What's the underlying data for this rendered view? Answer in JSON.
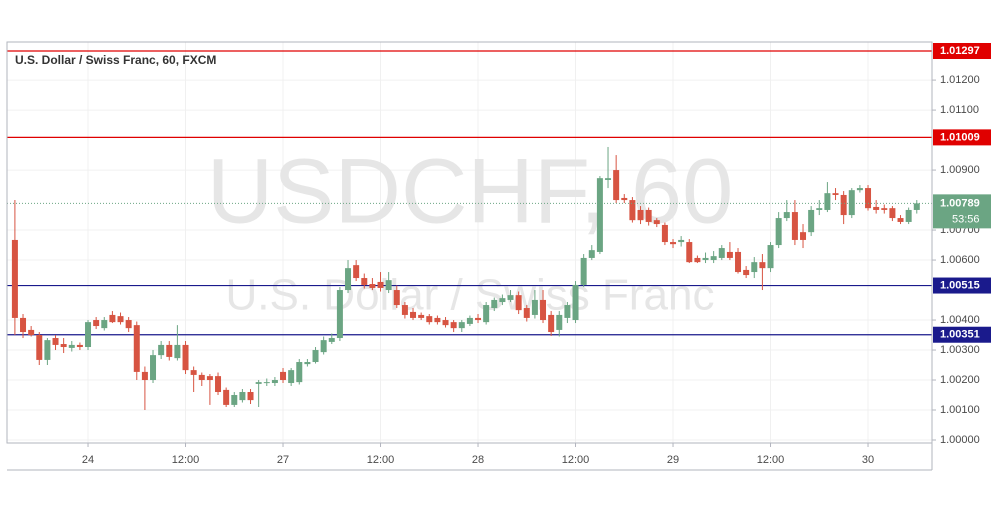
{
  "chart_data": {
    "type": "candlestick",
    "title": "U.S. Dollar / Swiss Franc, 60, FXCM",
    "watermark": {
      "symbol": "USDCHF, 60",
      "name": "U.S. Dollar / Swiss Franc"
    },
    "up_color": "#6ba583",
    "down_color": "#d75442",
    "categories": [
      null,
      null,
      null,
      null,
      null,
      null,
      null,
      null,
      null,
      "24",
      null,
      null,
      null,
      null,
      null,
      null,
      null,
      null,
      null,
      null,
      null,
      "12:00",
      null,
      null,
      null,
      null,
      null,
      null,
      null,
      null,
      null,
      null,
      null,
      "27",
      null,
      null,
      null,
      null,
      null,
      null,
      null,
      null,
      null,
      null,
      null,
      "12:00",
      null,
      null,
      null,
      null,
      null,
      null,
      null,
      null,
      null,
      null,
      null,
      "28",
      null,
      null,
      null,
      null,
      null,
      null,
      null,
      null,
      null,
      null,
      null,
      "12:00",
      null,
      null,
      null,
      null,
      null,
      null,
      null,
      null,
      null,
      null,
      null,
      "29",
      null,
      null,
      null,
      null,
      null,
      null,
      null,
      null,
      null,
      null,
      null,
      "12:00",
      null,
      null,
      null,
      null,
      null,
      null,
      null,
      null,
      null,
      null,
      null,
      "30",
      null,
      null,
      null,
      null,
      null,
      null
    ],
    "open": [
      1.00667,
      1.00407,
      1.00367,
      1.0035,
      1.00267,
      1.0034,
      1.0032,
      1.00307,
      1.00317,
      1.0031,
      1.004,
      1.00373,
      1.00417,
      1.00413,
      1.004,
      1.00383,
      1.00227,
      1.002,
      1.00283,
      1.00317,
      1.00273,
      1.00317,
      1.00233,
      1.00217,
      1.00213,
      1.00213,
      1.00167,
      1.00117,
      1.00133,
      1.0016,
      1.00187,
      1.0019,
      1.0019,
      1.00227,
      1.0019,
      1.00193,
      1.00253,
      1.0026,
      1.00293,
      1.00327,
      1.0034,
      1.005,
      1.00583,
      1.0054,
      1.0052,
      1.00527,
      1.005,
      1.005,
      1.0045,
      1.00427,
      1.00417,
      1.00413,
      1.00407,
      1.004,
      1.00393,
      1.00373,
      1.00387,
      1.00407,
      1.00393,
      1.0044,
      1.0046,
      1.00467,
      1.00483,
      1.0044,
      1.00417,
      1.00467,
      1.00417,
      1.00367,
      1.00407,
      1.004,
      1.00517,
      1.00607,
      1.00627,
      1.00867,
      1.009,
      1.00807,
      1.008,
      1.00767,
      1.00767,
      1.00733,
      1.00717,
      1.0066,
      1.0066,
      1.0066,
      1.00607,
      1.006,
      1.006,
      1.00607,
      1.00627,
      1.00627,
      1.00567,
      1.0056,
      1.00593,
      1.00573,
      1.0065,
      1.0074,
      1.0076,
      1.00693,
      1.00693,
      1.00767,
      1.00767,
      1.00823,
      1.00817,
      1.0075,
      1.00833,
      1.0084,
      1.00777,
      1.00773,
      1.00773,
      1.0074,
      1.00727,
      1.00767
    ],
    "high": [
      1.008,
      1.0042,
      1.0038,
      1.0036,
      1.0034,
      1.0035,
      1.0034,
      1.0033,
      1.00325,
      1.004,
      1.0041,
      1.0041,
      1.0043,
      1.00425,
      1.0041,
      1.00395,
      1.00245,
      1.003,
      1.0033,
      1.0033,
      1.00383,
      1.0033,
      1.00245,
      1.00225,
      1.0022,
      1.00225,
      1.00175,
      1.0016,
      1.0017,
      1.0017,
      1.002,
      1.00205,
      1.0021,
      1.0024,
      1.0024,
      1.0027,
      1.0027,
      1.0031,
      1.00345,
      1.00355,
      1.0051,
      1.006,
      1.006,
      1.00555,
      1.0054,
      1.0056,
      1.0056,
      1.00515,
      1.0046,
      1.0044,
      1.00425,
      1.0042,
      1.00415,
      1.0041,
      1.004,
      1.004,
      1.00415,
      1.0042,
      1.0046,
      1.00475,
      1.00485,
      1.005,
      1.00495,
      1.0045,
      1.005,
      1.005,
      1.0043,
      1.0043,
      1.0046,
      1.0053,
      1.0062,
      1.0065,
      1.0088,
      1.00977,
      1.0095,
      1.0082,
      1.0081,
      1.0078,
      1.00775,
      1.0074,
      1.00725,
      1.0067,
      1.0068,
      1.0067,
      1.00615,
      1.00625,
      1.0063,
      1.0065,
      1.0066,
      1.0064,
      1.0058,
      1.0061,
      1.0062,
      1.0066,
      1.0076,
      1.008,
      1.008,
      1.0072,
      1.0078,
      1.008,
      1.0086,
      1.0084,
      1.0083,
      1.0084,
      1.0085,
      1.0085,
      1.008,
      1.00785,
      1.0078,
      1.0075,
      1.00775,
      1.008
    ],
    "low": [
      1.0035,
      1.0034,
      1.00345,
      1.0025,
      1.0025,
      1.003,
      1.0029,
      1.00295,
      1.003,
      1.003,
      1.0037,
      1.00365,
      1.0039,
      1.00385,
      1.0036,
      1.002,
      1.001,
      1.0019,
      1.0027,
      1.00265,
      1.00265,
      1.0022,
      1.0016,
      1.0018,
      1.00117,
      1.0015,
      1.0011,
      1.0011,
      1.00125,
      1.0012,
      1.0011,
      1.0018,
      1.0018,
      1.0019,
      1.0018,
      1.00185,
      1.00245,
      1.00255,
      1.00285,
      1.0032,
      1.0033,
      1.0049,
      1.0053,
      1.00505,
      1.005,
      1.00495,
      1.0049,
      1.0044,
      1.00405,
      1.004,
      1.004,
      1.00385,
      1.00385,
      1.00375,
      1.0036,
      1.0036,
      1.0038,
      1.0039,
      1.00385,
      1.0043,
      1.0045,
      1.0046,
      1.0042,
      1.00395,
      1.00405,
      1.0039,
      1.00347,
      1.00345,
      1.0039,
      1.0039,
      1.0051,
      1.006,
      1.0062,
      1.0084,
      1.0079,
      1.0079,
      1.00725,
      1.0072,
      1.00715,
      1.0071,
      1.0065,
      1.0064,
      1.00645,
      1.0059,
      1.0059,
      1.0059,
      1.0059,
      1.006,
      1.006,
      1.00555,
      1.0054,
      1.0054,
      1.005,
      1.0056,
      1.0064,
      1.0073,
      1.0065,
      1.0064,
      1.0068,
      1.0075,
      1.0076,
      1.008,
      1.0072,
      1.0074,
      1.00825,
      1.00765,
      1.00755,
      1.00755,
      1.0073,
      1.0072,
      1.0072,
      1.00755
    ],
    "close": [
      1.00407,
      1.0036,
      1.0035,
      1.00267,
      1.00333,
      1.00317,
      1.0031,
      1.00317,
      1.0031,
      1.00393,
      1.0038,
      1.004,
      1.00393,
      1.00393,
      1.00373,
      1.00227,
      1.002,
      1.00283,
      1.00317,
      1.00277,
      1.00317,
      1.00233,
      1.00217,
      1.002,
      1.002,
      1.0016,
      1.00117,
      1.0015,
      1.0016,
      1.00133,
      1.00193,
      1.00193,
      1.002,
      1.002,
      1.00233,
      1.0026,
      1.0026,
      1.003,
      1.00333,
      1.0034,
      1.005,
      1.00573,
      1.0054,
      1.00517,
      1.00507,
      1.00507,
      1.00533,
      1.0045,
      1.00417,
      1.00407,
      1.00407,
      1.00393,
      1.00393,
      1.00383,
      1.00373,
      1.00393,
      1.00407,
      1.004,
      1.0045,
      1.00467,
      1.00473,
      1.00483,
      1.00433,
      1.00407,
      1.00467,
      1.004,
      1.0036,
      1.00417,
      1.0045,
      1.00517,
      1.00607,
      1.00633,
      1.00873,
      1.00873,
      1.008,
      1.008,
      1.00733,
      1.00733,
      1.00727,
      1.0072,
      1.0066,
      1.00653,
      1.00667,
      1.00593,
      1.00593,
      1.00607,
      1.00613,
      1.0064,
      1.00607,
      1.0056,
      1.0055,
      1.00593,
      1.00573,
      1.0065,
      1.0074,
      1.0076,
      1.00667,
      1.00667,
      1.00767,
      1.00773,
      1.00823,
      1.00817,
      1.0075,
      1.00833,
      1.0084,
      1.00773,
      1.00767,
      1.00767,
      1.0074,
      1.00727,
      1.00767,
      1.00789
    ],
    "countdown": "53:56",
    "levels": [
      {
        "value": 1.01297,
        "color": "#e00000"
      },
      {
        "value": 1.01009,
        "color": "#e00000"
      },
      {
        "value": 1.00515,
        "color": "#1a1a8c"
      },
      {
        "value": 1.00351,
        "color": "#1a1a8c"
      }
    ],
    "ylim": [
      0.9999,
      1.01327
    ],
    "yticks": [
      {
        "value": 1.0,
        "label": "1.00000"
      },
      {
        "value": 1.001,
        "label": "1.00100"
      },
      {
        "value": 1.002,
        "label": "1.00200"
      },
      {
        "value": 1.003,
        "label": "1.00300"
      },
      {
        "value": 1.004,
        "label": "1.00400"
      },
      {
        "value": 1.006,
        "label": "1.00600"
      },
      {
        "value": 1.007,
        "label": "1.00700"
      },
      {
        "value": 1.009,
        "label": "1.00900"
      },
      {
        "value": 1.011,
        "label": "1.01100"
      },
      {
        "value": 1.012,
        "label": "1.01200"
      }
    ],
    "grid": true
  }
}
